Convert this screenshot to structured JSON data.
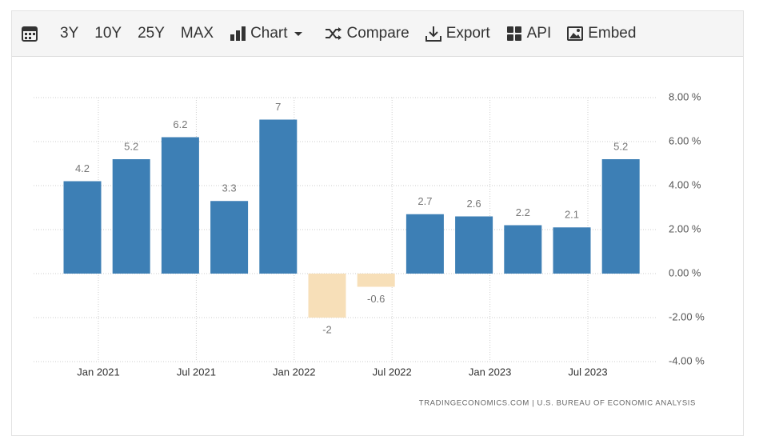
{
  "toolbar": {
    "items": [
      "3Y",
      "10Y",
      "25Y",
      "MAX",
      "Chart",
      "Compare",
      "Export",
      "API",
      "Embed"
    ]
  },
  "chart_data": {
    "type": "bar",
    "values": [
      4.2,
      5.2,
      6.2,
      3.3,
      7,
      -2,
      -0.6,
      2.7,
      2.6,
      2.2,
      2.1,
      5.2
    ],
    "positive_color": "#3d7fb5",
    "negative_color": "#f7dfb8",
    "x_labels": [
      "Jan 2021",
      "Jul 2021",
      "Jan 2022",
      "Jul 2022",
      "Jan 2023",
      "Jul 2023"
    ],
    "ylim": [
      -4,
      8
    ],
    "yticks": [
      {
        "value": 8,
        "label": "8.00 %"
      },
      {
        "value": 6,
        "label": "6.00 %"
      },
      {
        "value": 4,
        "label": "4.00 %"
      },
      {
        "value": 2,
        "label": "2.00 %"
      },
      {
        "value": 0,
        "label": "0.00 %"
      },
      {
        "value": -2,
        "label": "-2.00 %"
      },
      {
        "value": -4,
        "label": "-4.00 %"
      }
    ],
    "grid": true,
    "source": "TRADINGECONOMICS.COM | U.S. BUREAU OF ECONOMIC ANALYSIS"
  }
}
